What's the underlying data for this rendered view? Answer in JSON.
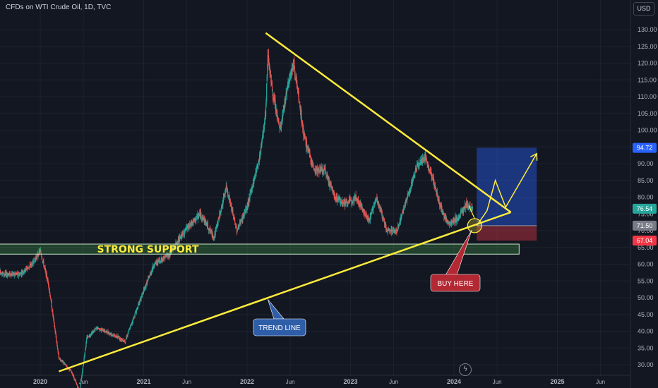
{
  "header": {
    "title": "CFDs on WTI Crude Oil, 1D, TVC",
    "currency": "USD"
  },
  "chart_data": {
    "type": "candlestick",
    "title": "CFDs on WTI Crude Oil, 1D, TVC",
    "y_ticks": [
      30,
      35,
      40,
      45,
      50,
      55,
      60,
      65,
      70,
      75,
      80,
      85,
      90,
      95,
      100,
      105,
      110,
      115,
      120,
      125,
      130
    ],
    "y_range": [
      27,
      134
    ],
    "x_ticks": [
      {
        "label": "2020",
        "t": 2020.0
      },
      {
        "label": "Jun",
        "t": 2020.417
      },
      {
        "label": "2021",
        "t": 2021.0
      },
      {
        "label": "Jun",
        "t": 2021.417
      },
      {
        "label": "2022",
        "t": 2022.0
      },
      {
        "label": "Jun",
        "t": 2022.417
      },
      {
        "label": "2023",
        "t": 2023.0
      },
      {
        "label": "Jun",
        "t": 2023.417
      },
      {
        "label": "2024",
        "t": 2024.0
      },
      {
        "label": "Jun",
        "t": 2024.417
      },
      {
        "label": "2025",
        "t": 2025.0
      },
      {
        "label": "Jun",
        "t": 2025.417
      }
    ],
    "price_path": [
      [
        2019.5,
        60
      ],
      [
        2019.65,
        57
      ],
      [
        2019.8,
        57
      ],
      [
        2019.92,
        60
      ],
      [
        2020.0,
        64
      ],
      [
        2020.08,
        54
      ],
      [
        2020.18,
        32
      ],
      [
        2020.3,
        28
      ],
      [
        2020.38,
        22
      ],
      [
        2020.45,
        38
      ],
      [
        2020.55,
        41
      ],
      [
        2020.7,
        39
      ],
      [
        2020.82,
        37
      ],
      [
        2020.95,
        48
      ],
      [
        2021.1,
        60
      ],
      [
        2021.25,
        63
      ],
      [
        2021.4,
        70
      ],
      [
        2021.55,
        75
      ],
      [
        2021.68,
        68
      ],
      [
        2021.8,
        83
      ],
      [
        2021.9,
        70
      ],
      [
        2022.0,
        77
      ],
      [
        2022.12,
        92
      ],
      [
        2022.18,
        105
      ],
      [
        2022.2,
        123
      ],
      [
        2022.25,
        110
      ],
      [
        2022.32,
        100
      ],
      [
        2022.4,
        115
      ],
      [
        2022.45,
        120
      ],
      [
        2022.55,
        98
      ],
      [
        2022.65,
        88
      ],
      [
        2022.75,
        88
      ],
      [
        2022.85,
        80
      ],
      [
        2022.95,
        78
      ],
      [
        2023.05,
        80
      ],
      [
        2023.18,
        73
      ],
      [
        2023.25,
        80
      ],
      [
        2023.35,
        70
      ],
      [
        2023.45,
        70
      ],
      [
        2023.55,
        80
      ],
      [
        2023.65,
        90
      ],
      [
        2023.72,
        92
      ],
      [
        2023.8,
        85
      ],
      [
        2023.88,
        76
      ],
      [
        2023.95,
        72
      ],
      [
        2024.05,
        74
      ],
      [
        2024.12,
        78
      ],
      [
        2024.18,
        76.54
      ]
    ],
    "price_labels": [
      {
        "value": 94.72,
        "text": "94.72",
        "color": "#2962ff"
      },
      {
        "value": 76.54,
        "text": "76.54",
        "color": "#26a69a"
      },
      {
        "value": 71.5,
        "text": "71.50",
        "color": "#787b86"
      },
      {
        "value": 67.04,
        "text": "67.04",
        "color": "#f23645"
      }
    ],
    "annotations": {
      "support_zone": {
        "label": "STRONG SUPPORT",
        "y_low": 63.0,
        "y_high": 66.0,
        "t_start": 2019.5,
        "t_end": 2024.63
      },
      "trend_line": {
        "label": "TREND LINE",
        "from": {
          "t": 2020.18,
          "y": 28
        },
        "to": {
          "t": 2024.55,
          "y": 75.5
        }
      },
      "resistance_line": {
        "from": {
          "t": 2022.18,
          "y": 129
        },
        "to": {
          "t": 2024.55,
          "y": 75.5
        }
      },
      "position": {
        "entry": 71.5,
        "target": 94.72,
        "stop": 67.04,
        "t_start": 2024.22,
        "t_end": 2024.8
      },
      "buy_label": "BUY HERE",
      "entry_circle": {
        "t": 2024.2,
        "y": 71.5
      },
      "projection_path": [
        {
          "t": 2024.22,
          "y": 71.5
        },
        {
          "t": 2024.32,
          "y": 76
        },
        {
          "t": 2024.4,
          "y": 85
        },
        {
          "t": 2024.5,
          "y": 77
        },
        {
          "t": 2024.8,
          "y": 93
        }
      ]
    }
  }
}
